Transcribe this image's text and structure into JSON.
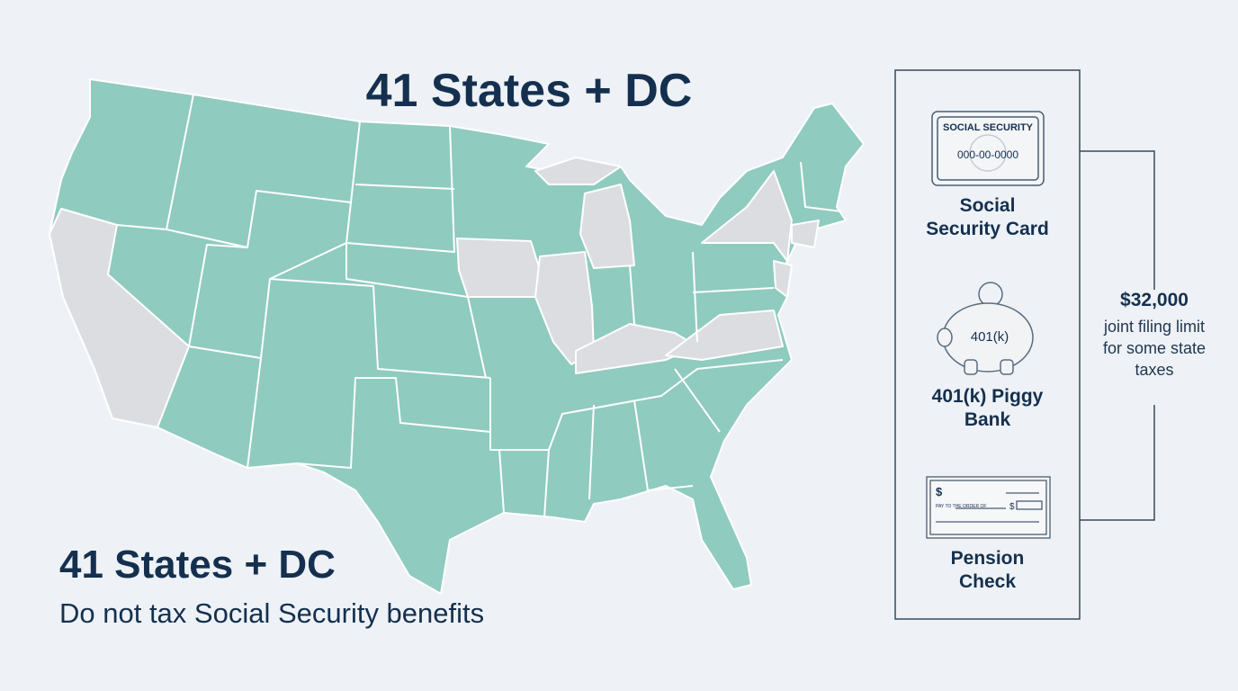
{
  "header": {
    "title": "41 States + DC"
  },
  "summary": {
    "heading": "41 States + DC",
    "subtitle": "Do not tax Social Security benefits"
  },
  "panel": {
    "items": [
      {
        "label": "Social Security Card",
        "icon_texts": [
          "SOCIAL SECURITY",
          "000-00-0000"
        ]
      },
      {
        "label": "401(k) Piggy Bank",
        "icon_texts": [
          "401(k)"
        ]
      },
      {
        "label": "Pension Check",
        "icon_texts": [
          "$",
          "PAY TO THE ORDER OF",
          "$"
        ]
      }
    ],
    "note": {
      "amount": "$32,000",
      "text": "joint filing limit for some state taxes"
    }
  }
}
